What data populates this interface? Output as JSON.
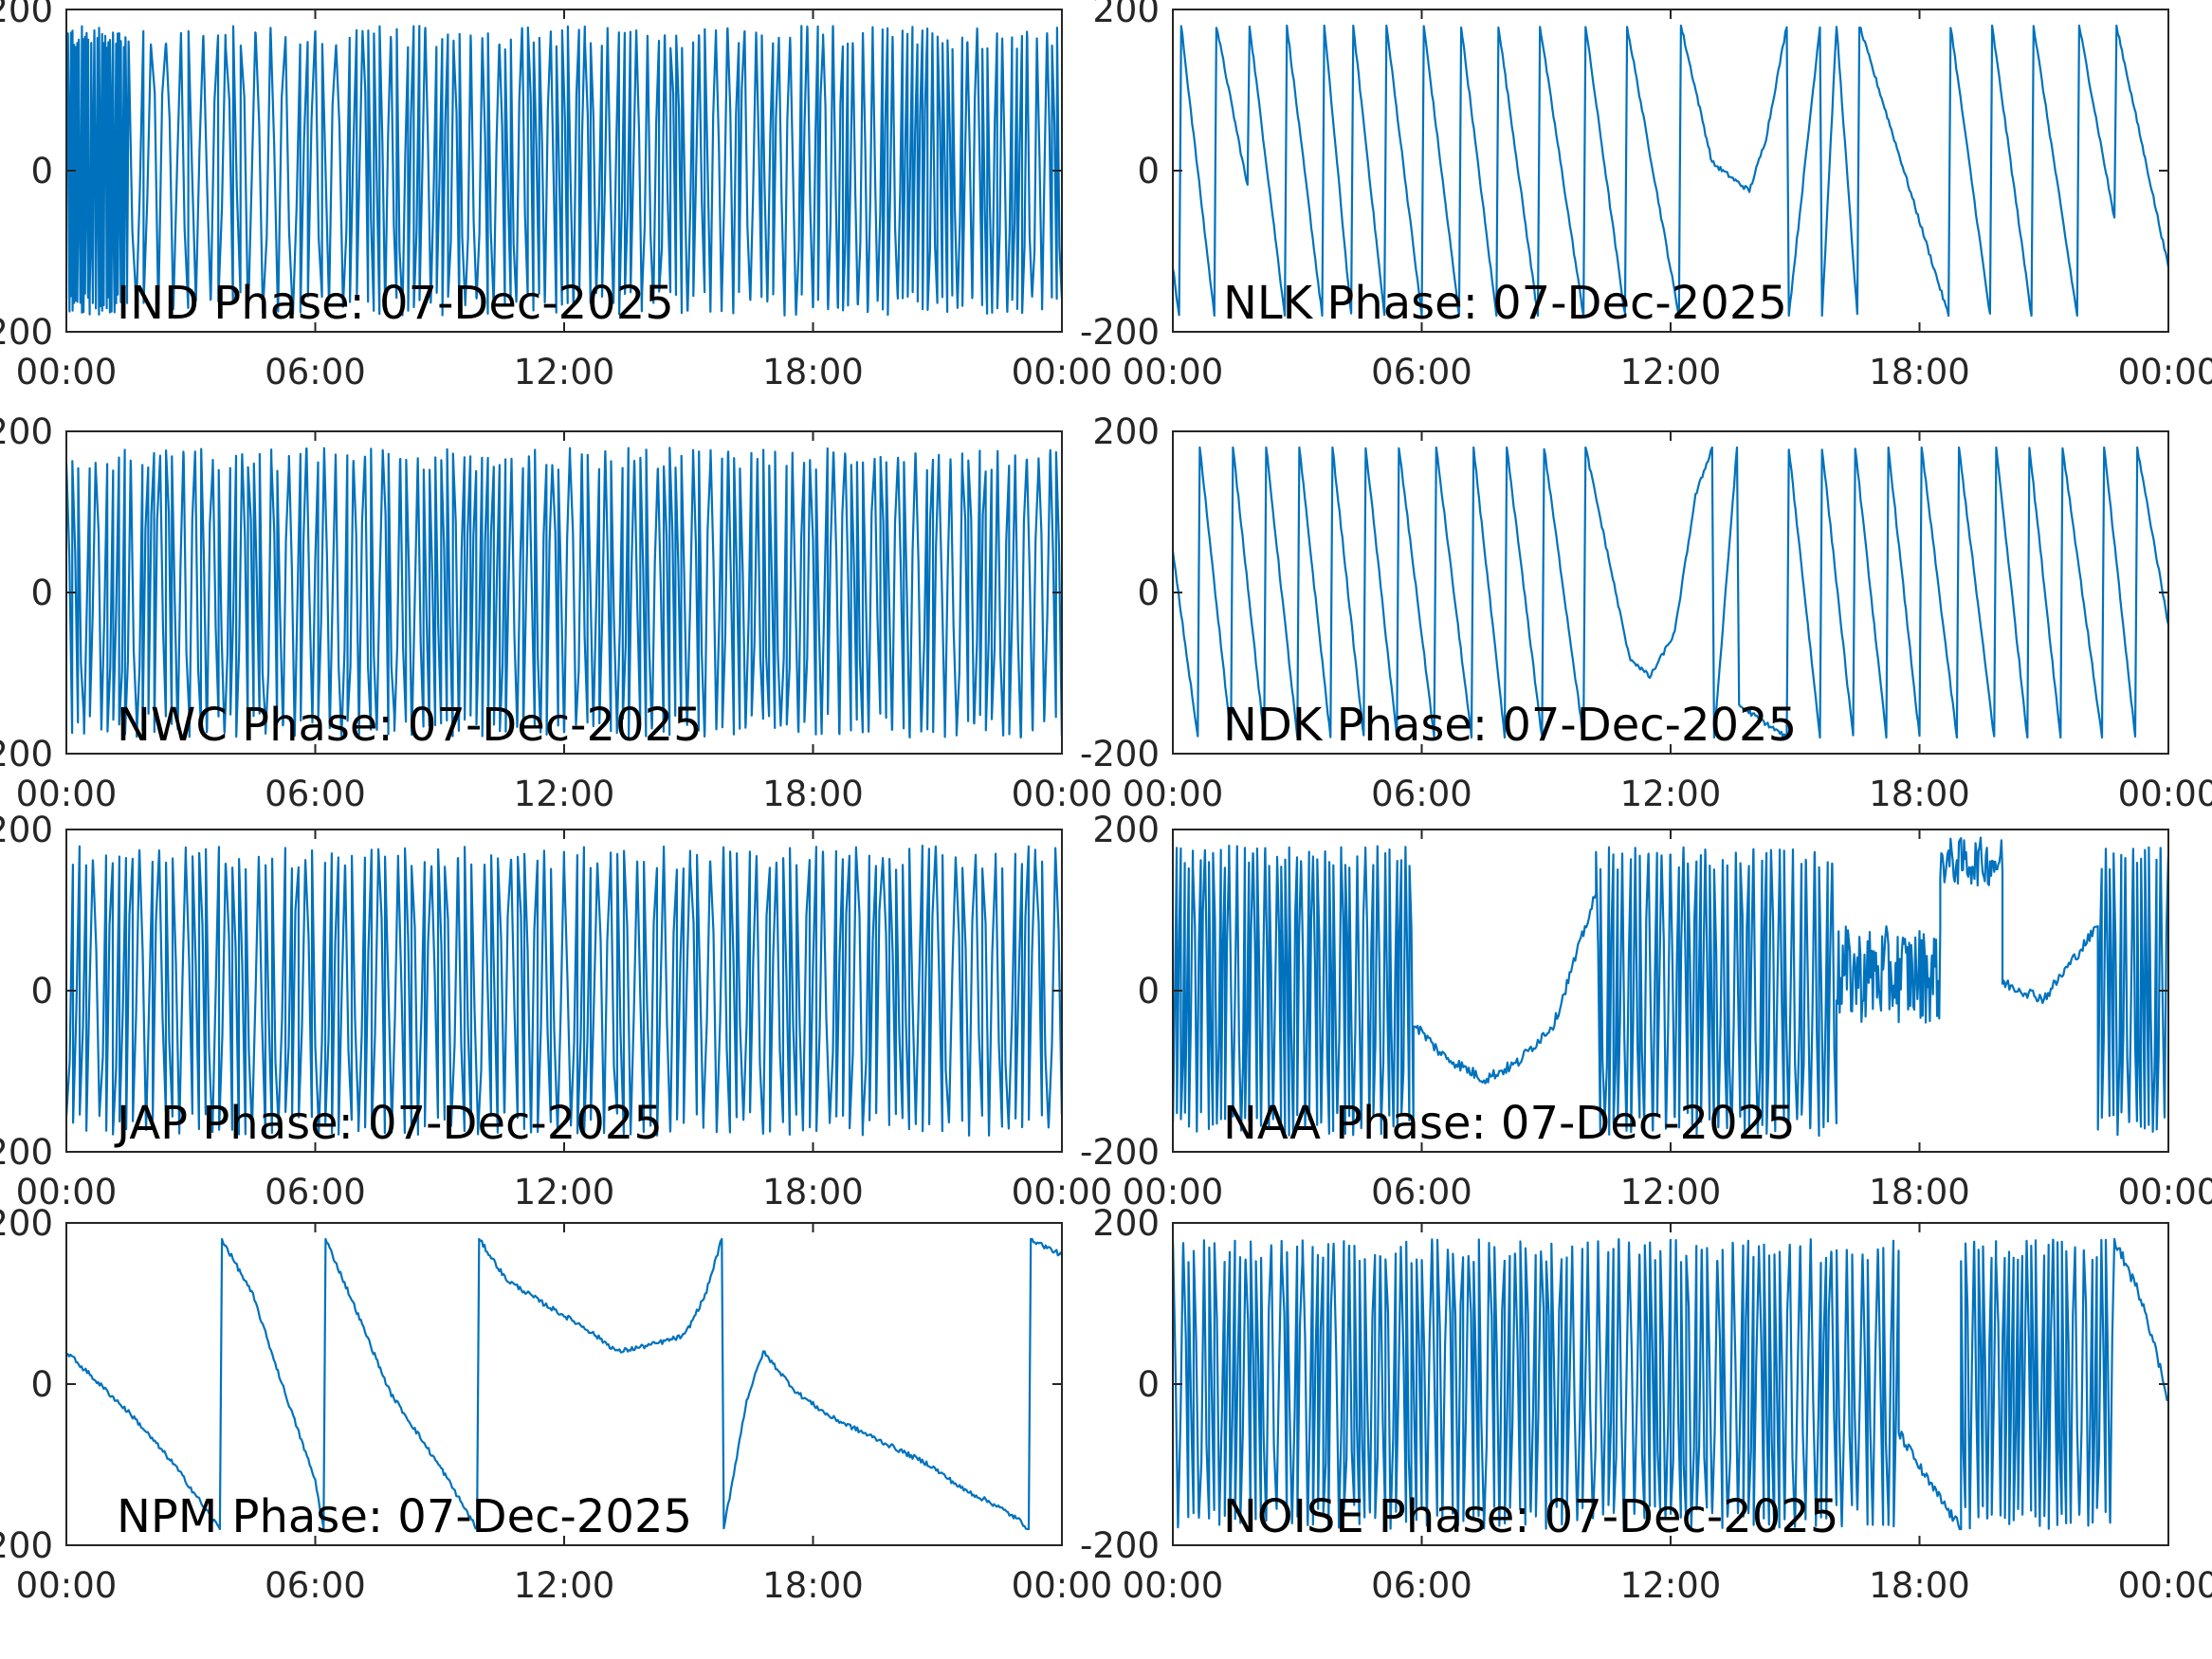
{
  "figure": {
    "line_color": "#0072BD",
    "axis_color": "#262626"
  },
  "chart_data": [
    {
      "type": "line",
      "title": "IND Phase: 07-Dec-2025",
      "xlabel": "",
      "ylabel": "",
      "x_range": [
        "00:00",
        "24:00"
      ],
      "x_ticks": [
        "00:00",
        "06:00",
        "12:00",
        "18:00",
        "00:00"
      ],
      "y_ticks": [
        "-200",
        "0",
        "200"
      ],
      "ylim": [
        -200,
        200
      ],
      "grid": false,
      "pattern": {
        "kind": "dense",
        "wrap_counts": [
          {
            "from_h": 0,
            "to_h": 1.5,
            "wraps": 40
          },
          {
            "from_h": 1.5,
            "to_h": 6,
            "wraps": 25
          },
          {
            "from_h": 6,
            "to_h": 7,
            "wraps": 6
          },
          {
            "from_h": 7,
            "to_h": 18,
            "wraps": 80
          },
          {
            "from_h": 18,
            "to_h": 24,
            "wraps": 50
          }
        ]
      }
    },
    {
      "type": "line",
      "title": "NLK Phase: 07-Dec-2025",
      "xlabel": "",
      "ylabel": "",
      "x_range": [
        "00:00",
        "24:00"
      ],
      "x_ticks": [
        "00:00",
        "06:00",
        "12:00",
        "18:00",
        "00:00"
      ],
      "y_ticks": [
        "-200",
        "0",
        "200"
      ],
      "ylim": [
        -200,
        200
      ],
      "grid": false,
      "pattern": {
        "kind": "sawtooth",
        "keypoints": [
          [
            0.0,
            -120
          ],
          [
            0.15,
            -180
          ],
          [
            0.2,
            180
          ],
          [
            1.0,
            -180
          ],
          [
            1.05,
            180
          ],
          [
            1.8,
            -20
          ],
          [
            1.85,
            180
          ],
          [
            2.7,
            -180
          ],
          [
            2.75,
            180
          ],
          [
            3.6,
            -180
          ],
          [
            3.65,
            180
          ],
          [
            4.3,
            -180
          ],
          [
            4.35,
            180
          ],
          [
            5.1,
            -180
          ],
          [
            5.15,
            180
          ],
          [
            6.0,
            -180
          ],
          [
            6.05,
            180
          ],
          [
            6.9,
            -180
          ],
          [
            6.95,
            180
          ],
          [
            7.8,
            -180
          ],
          [
            7.85,
            180
          ],
          [
            8.8,
            -180
          ],
          [
            8.85,
            180
          ],
          [
            9.9,
            -180
          ],
          [
            9.95,
            180
          ],
          [
            10.9,
            -180
          ],
          [
            10.95,
            180
          ],
          [
            12.2,
            -180
          ],
          [
            12.25,
            180
          ],
          [
            13.0,
            10
          ],
          [
            13.5,
            -10
          ],
          [
            13.9,
            -25
          ],
          [
            14.3,
            40
          ],
          [
            14.8,
            180
          ],
          [
            14.85,
            -180
          ],
          [
            15.6,
            180
          ],
          [
            15.65,
            -180
          ],
          [
            16.0,
            180
          ],
          [
            16.5,
            -180
          ],
          [
            16.55,
            180
          ],
          [
            18.7,
            -180
          ],
          [
            18.75,
            180
          ],
          [
            19.7,
            -180
          ],
          [
            19.75,
            180
          ],
          [
            20.7,
            -180
          ],
          [
            20.75,
            180
          ],
          [
            21.8,
            -180
          ],
          [
            21.85,
            180
          ],
          [
            22.7,
            -60
          ],
          [
            22.75,
            180
          ],
          [
            24.0,
            -120
          ]
        ]
      }
    },
    {
      "type": "line",
      "title": "NWC Phase: 07-Dec-2025",
      "xlabel": "",
      "ylabel": "",
      "x_range": [
        "00:00",
        "24:00"
      ],
      "x_ticks": [
        "00:00",
        "06:00",
        "12:00",
        "18:00",
        "00:00"
      ],
      "y_ticks": [
        "-200",
        "0",
        "200"
      ],
      "ylim": [
        -200,
        200
      ],
      "grid": false,
      "pattern": {
        "kind": "dense",
        "wrap_counts": [
          {
            "from_h": 0,
            "to_h": 24,
            "wraps": 170
          }
        ]
      }
    },
    {
      "type": "line",
      "title": "NDK Phase: 07-Dec-2025",
      "xlabel": "",
      "ylabel": "",
      "x_range": [
        "00:00",
        "24:00"
      ],
      "x_ticks": [
        "00:00",
        "06:00",
        "12:00",
        "18:00",
        "00:00"
      ],
      "y_ticks": [
        "-200",
        "0",
        "200"
      ],
      "ylim": [
        -200,
        200
      ],
      "grid": false,
      "pattern": {
        "kind": "sawtooth",
        "keypoints": [
          [
            0.0,
            50
          ],
          [
            0.6,
            -180
          ],
          [
            0.65,
            180
          ],
          [
            1.4,
            -180
          ],
          [
            1.45,
            180
          ],
          [
            2.2,
            -180
          ],
          [
            2.25,
            180
          ],
          [
            3.0,
            -180
          ],
          [
            3.05,
            180
          ],
          [
            3.8,
            -180
          ],
          [
            3.85,
            180
          ],
          [
            4.6,
            -180
          ],
          [
            4.65,
            180
          ],
          [
            5.4,
            -180
          ],
          [
            5.45,
            180
          ],
          [
            6.3,
            -180
          ],
          [
            6.35,
            180
          ],
          [
            7.2,
            -180
          ],
          [
            7.25,
            180
          ],
          [
            8.0,
            -180
          ],
          [
            8.05,
            180
          ],
          [
            8.9,
            -180
          ],
          [
            8.95,
            180
          ],
          [
            9.9,
            -180
          ],
          [
            9.95,
            180
          ],
          [
            11.0,
            -80
          ],
          [
            11.5,
            -105
          ],
          [
            12.1,
            -50
          ],
          [
            12.6,
            120
          ],
          [
            13.0,
            180
          ],
          [
            13.05,
            -180
          ],
          [
            13.6,
            180
          ],
          [
            13.65,
            -140
          ],
          [
            14.8,
            -180
          ],
          [
            14.85,
            180
          ],
          [
            15.6,
            -180
          ],
          [
            15.65,
            180
          ],
          [
            16.4,
            -180
          ],
          [
            16.45,
            180
          ],
          [
            17.2,
            -180
          ],
          [
            17.25,
            180
          ],
          [
            18.0,
            -180
          ],
          [
            18.05,
            180
          ],
          [
            18.9,
            -180
          ],
          [
            18.95,
            180
          ],
          [
            19.8,
            -180
          ],
          [
            19.85,
            180
          ],
          [
            20.6,
            -180
          ],
          [
            20.65,
            180
          ],
          [
            21.4,
            -180
          ],
          [
            21.45,
            180
          ],
          [
            22.4,
            -180
          ],
          [
            22.45,
            180
          ],
          [
            23.2,
            -180
          ],
          [
            23.25,
            180
          ],
          [
            24.0,
            -40
          ]
        ]
      }
    },
    {
      "type": "line",
      "title": "JAP Phase: 07-Dec-2025",
      "xlabel": "",
      "ylabel": "",
      "x_range": [
        "00:00",
        "24:00"
      ],
      "x_ticks": [
        "00:00",
        "06:00",
        "12:00",
        "18:00",
        "00:00"
      ],
      "y_ticks": [
        "-200",
        "0",
        "200"
      ],
      "ylim": [
        -200,
        200
      ],
      "grid": false,
      "pattern": {
        "kind": "dense",
        "wrap_counts": [
          {
            "from_h": 0,
            "to_h": 24,
            "wraps": 150
          }
        ]
      }
    },
    {
      "type": "line",
      "title": "NAA Phase: 07-Dec-2025",
      "xlabel": "",
      "ylabel": "",
      "x_range": [
        "00:00",
        "24:00"
      ],
      "x_ticks": [
        "00:00",
        "06:00",
        "12:00",
        "18:00",
        "00:00"
      ],
      "y_ticks": [
        "-200",
        "0",
        "200"
      ],
      "ylim": [
        -200,
        200
      ],
      "grid": false,
      "pattern": {
        "kind": "mixed",
        "segments": [
          {
            "from_h": 0,
            "to_h": 5.8,
            "mode": "dense",
            "wraps": 60
          },
          {
            "from_h": 5.8,
            "to_h": 10.2,
            "mode": "drift",
            "points": [
              [
                5.8,
                -40
              ],
              [
                6.5,
                -80
              ],
              [
                7.5,
                -110
              ],
              [
                8.3,
                -90
              ],
              [
                9.2,
                -40
              ],
              [
                10.2,
                120
              ]
            ]
          },
          {
            "from_h": 10.2,
            "to_h": 16.0,
            "mode": "dense",
            "wraps": 55
          },
          {
            "from_h": 16.0,
            "to_h": 18.5,
            "mode": "band",
            "center": 20,
            "spread": 60
          },
          {
            "from_h": 18.5,
            "to_h": 20.0,
            "mode": "band",
            "center": 160,
            "spread": 30
          },
          {
            "from_h": 20.0,
            "to_h": 22.3,
            "mode": "drift",
            "points": [
              [
                20.0,
                10
              ],
              [
                21.0,
                -10
              ],
              [
                22.3,
                80
              ]
            ]
          },
          {
            "from_h": 22.3,
            "to_h": 24.0,
            "mode": "dense",
            "wraps": 18
          }
        ]
      }
    },
    {
      "type": "line",
      "title": "NPM Phase: 07-Dec-2025",
      "xlabel": "",
      "ylabel": "",
      "x_range": [
        "00:00",
        "24:00"
      ],
      "x_ticks": [
        "00:00",
        "06:00",
        "12:00",
        "18:00",
        "00:00"
      ],
      "y_ticks": [
        "-200",
        "0",
        "200"
      ],
      "ylim": [
        -200,
        200
      ],
      "grid": false,
      "pattern": {
        "kind": "sawtooth",
        "keypoints": [
          [
            0.0,
            40
          ],
          [
            0.6,
            10
          ],
          [
            1.6,
            -40
          ],
          [
            2.6,
            -100
          ],
          [
            3.7,
            -180
          ],
          [
            3.75,
            180
          ],
          [
            4.5,
            110
          ],
          [
            5.2,
            0
          ],
          [
            6.0,
            -120
          ],
          [
            6.2,
            -180
          ],
          [
            6.25,
            180
          ],
          [
            7.0,
            90
          ],
          [
            7.8,
            -10
          ],
          [
            9.1,
            -110
          ],
          [
            9.9,
            -180
          ],
          [
            9.95,
            180
          ],
          [
            10.6,
            130
          ],
          [
            11.5,
            100
          ],
          [
            12.5,
            70
          ],
          [
            13.3,
            40
          ],
          [
            14.2,
            50
          ],
          [
            14.9,
            60
          ],
          [
            15.4,
            110
          ],
          [
            15.8,
            180
          ],
          [
            15.85,
            -180
          ],
          [
            16.4,
            -20
          ],
          [
            16.8,
            40
          ],
          [
            17.6,
            -10
          ],
          [
            18.4,
            -40
          ],
          [
            19.6,
            -70
          ],
          [
            20.8,
            -100
          ],
          [
            21.6,
            -130
          ],
          [
            22.4,
            -150
          ],
          [
            23.0,
            -170
          ],
          [
            23.2,
            -180
          ],
          [
            23.25,
            180
          ],
          [
            24.0,
            160
          ]
        ]
      }
    },
    {
      "type": "line",
      "title": "NOISE Phase: 07-Dec-2025",
      "xlabel": "",
      "ylabel": "",
      "x_range": [
        "00:00",
        "24:00"
      ],
      "x_ticks": [
        "00:00",
        "06:00",
        "12:00",
        "18:00",
        "00:00"
      ],
      "y_ticks": [
        "-200",
        "0",
        "200"
      ],
      "ylim": [
        -200,
        200
      ],
      "grid": false,
      "pattern": {
        "kind": "mixed",
        "segments": [
          {
            "from_h": 0,
            "to_h": 17.5,
            "mode": "dense",
            "wraps": 140
          },
          {
            "from_h": 17.5,
            "to_h": 19.0,
            "mode": "drift",
            "points": [
              [
                17.5,
                -60
              ],
              [
                18.2,
                -120
              ],
              [
                19.0,
                -180
              ]
            ]
          },
          {
            "from_h": 19.0,
            "to_h": 22.7,
            "mode": "dense",
            "wraps": 35
          },
          {
            "from_h": 22.7,
            "to_h": 24.0,
            "mode": "drift",
            "points": [
              [
                22.7,
                180
              ],
              [
                23.4,
                100
              ],
              [
                24.0,
                -20
              ]
            ]
          }
        ]
      }
    }
  ]
}
